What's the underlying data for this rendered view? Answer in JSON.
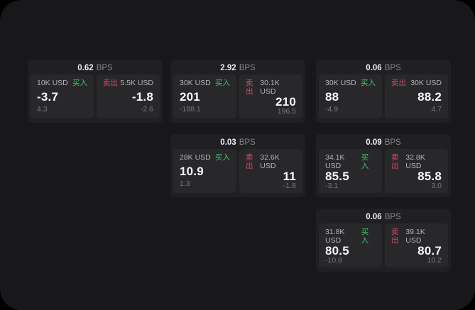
{
  "labels": {
    "buy": "买入",
    "sell": "卖出",
    "bps_unit": "BPS"
  },
  "colors": {
    "background": "#000000",
    "page_bg": "#18181a",
    "card_bg": "#202023",
    "panel_bg": "#28282b",
    "buy_green": "#3fc46d",
    "sell_red": "#d44a68"
  },
  "cards": [
    {
      "bps": "0.62",
      "buy": {
        "size": "10K USD",
        "value": "-3.7",
        "sub": "4.3"
      },
      "sell": {
        "size": "5.5K USD",
        "value": "-1.8",
        "sub": "-2.6"
      }
    },
    {
      "bps": "2.92",
      "buy": {
        "size": "30K USD",
        "value": "201",
        "sub": "-188.1"
      },
      "sell": {
        "size": "30.1K USD",
        "value": "210",
        "sub": "196.5"
      }
    },
    {
      "bps": "0.06",
      "buy": {
        "size": "30K USD",
        "value": "88",
        "sub": "-4.9"
      },
      "sell": {
        "size": "30K USD",
        "value": "88.2",
        "sub": "4.7"
      }
    },
    {
      "bps": "0.03",
      "buy": {
        "size": "28K USD",
        "value": "10.9",
        "sub": "1.3"
      },
      "sell": {
        "size": "32.6K USD",
        "value": "11",
        "sub": "-1.8"
      }
    },
    {
      "bps": "0.09",
      "buy": {
        "size": "34.1K USD",
        "value": "85.5",
        "sub": "-3.1"
      },
      "sell": {
        "size": "32.8K USD",
        "value": "85.8",
        "sub": "3.0"
      }
    },
    {
      "bps": "0.06",
      "buy": {
        "size": "31.8K USD",
        "value": "80.5",
        "sub": "-10.8"
      },
      "sell": {
        "size": "39.1K USD",
        "value": "80.7",
        "sub": "10.2"
      }
    }
  ]
}
